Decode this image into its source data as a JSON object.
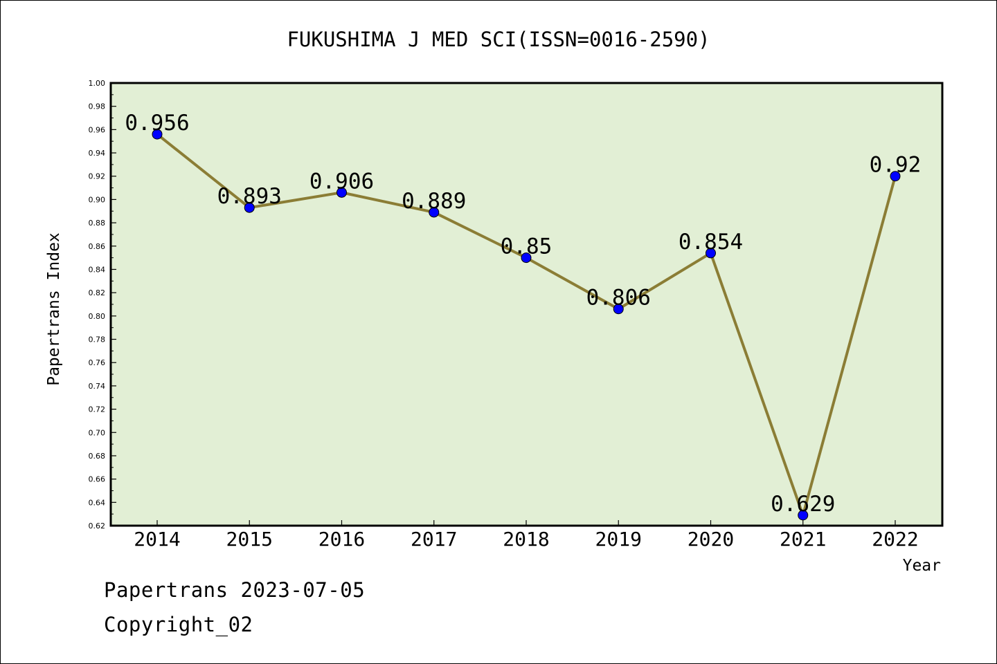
{
  "chart_data": {
    "type": "line",
    "title": "FUKUSHIMA J MED SCI(ISSN=0016-2590)",
    "xlabel": "Year",
    "ylabel": "Papertrans Index",
    "categories": [
      "2014",
      "2015",
      "2016",
      "2017",
      "2018",
      "2019",
      "2020",
      "2021",
      "2022"
    ],
    "values": [
      0.956,
      0.893,
      0.906,
      0.889,
      0.85,
      0.806,
      0.854,
      0.629,
      0.92
    ],
    "data_labels": [
      "0.956",
      "0.893",
      "0.906",
      "0.889",
      "0.85",
      "0.806",
      "0.854",
      "0.629",
      "0.92"
    ],
    "ylim": [
      0.62,
      1.0
    ],
    "yticks": [
      "0.62",
      "0.64",
      "0.66",
      "0.68",
      "0.70",
      "0.72",
      "0.74",
      "0.76",
      "0.78",
      "0.80",
      "0.82",
      "0.84",
      "0.86",
      "0.88",
      "0.90",
      "0.92",
      "0.94",
      "0.96",
      "0.98",
      "1.00"
    ],
    "grid": false,
    "colors": {
      "plot_background": "#e2efd5",
      "line": "#8b7d35",
      "marker": "#0000ff"
    }
  },
  "footer": {
    "line1": "Papertrans 2023-07-05",
    "line2": "Copyright_02"
  }
}
